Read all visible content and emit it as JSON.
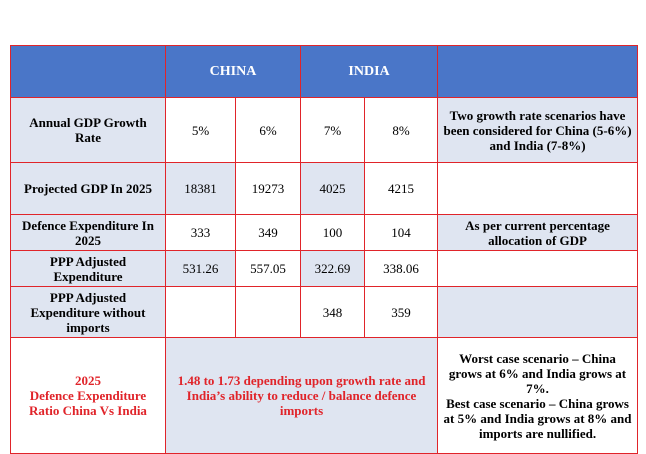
{
  "header": {
    "china": "CHINA",
    "india": "INDIA"
  },
  "rows": [
    {
      "label": "Annual GDP Growth Rate",
      "values": [
        "5%",
        "6%",
        "7%",
        "8%"
      ],
      "note": "Two growth rate scenarios have been considered for China (5-6%) and India (7-8%)"
    },
    {
      "label": "Projected GDP In 2025",
      "values": [
        "18381",
        "19273",
        "4025",
        "4215"
      ],
      "note": ""
    },
    {
      "label": "Defence Expenditure In 2025",
      "values": [
        "333",
        "349",
        "100",
        "104"
      ],
      "note": "As per current percentage allocation of GDP"
    },
    {
      "label": "PPP Adjusted Expenditure",
      "values": [
        "531.26",
        "557.05",
        "322.69",
        "338.06"
      ],
      "note": ""
    },
    {
      "label": "PPP Adjusted Expenditure without imports",
      "values": [
        "",
        "",
        "348",
        "359"
      ],
      "note": ""
    }
  ],
  "summary": {
    "label_line1": "2025",
    "label_line2": "Defence Expenditure Ratio China Vs India",
    "ratio": "1.48 to 1.73 depending upon growth rate and India’s ability to reduce / balance defence imports",
    "worst_case": "Worst case scenario – China grows at 6% and India grows at 7%.",
    "best_case": "Best case scenario – China grows at 5% and India grows at 8% and imports are nullified."
  }
}
